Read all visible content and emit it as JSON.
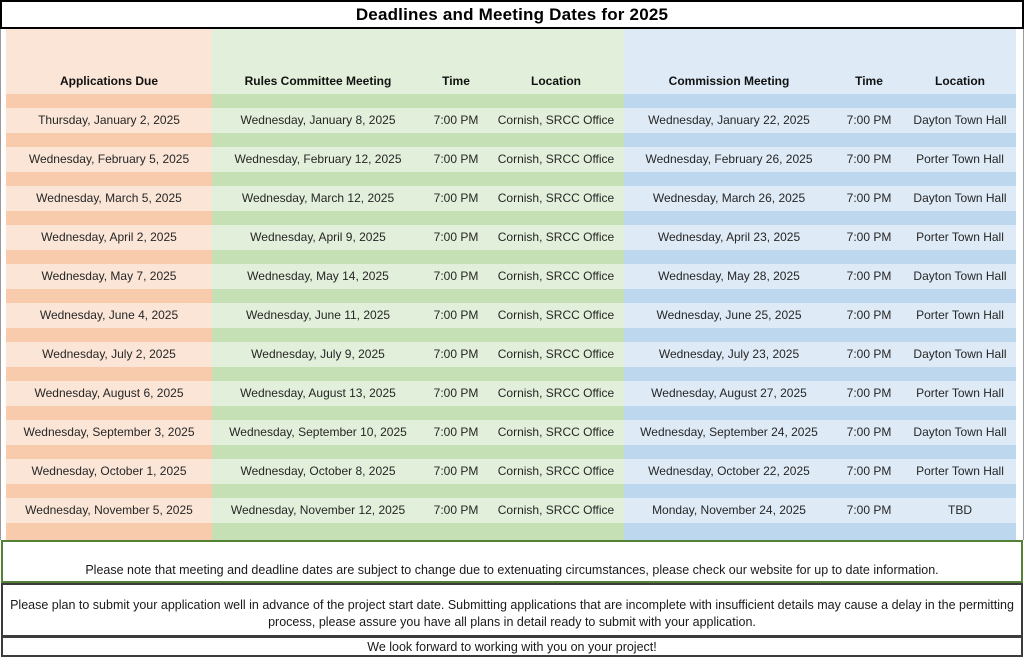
{
  "title": "Deadlines and Meeting Dates for 2025",
  "table": {
    "columns": [
      {
        "key": "applications_due",
        "label": "Applications Due",
        "group": "applications"
      },
      {
        "key": "rules_meeting",
        "label": "Rules Committee Meeting",
        "group": "rules"
      },
      {
        "key": "rules_time",
        "label": "Time",
        "group": "rules"
      },
      {
        "key": "rules_location",
        "label": "Location",
        "group": "rules"
      },
      {
        "key": "commission_meeting",
        "label": "Commission Meeting",
        "group": "commission"
      },
      {
        "key": "commission_time",
        "label": "Time",
        "group": "commission"
      },
      {
        "key": "commission_location",
        "label": "Location",
        "group": "commission"
      }
    ],
    "rows": [
      {
        "applications_due": "Thursday, January 2, 2025",
        "rules_meeting": "Wednesday, January 8, 2025",
        "rules_time": "7:00 PM",
        "rules_location": "Cornish, SRCC Office",
        "commission_meeting": "Wednesday, January 22, 2025",
        "commission_time": "7:00 PM",
        "commission_location": "Dayton Town Hall"
      },
      {
        "applications_due": "Wednesday, February 5, 2025",
        "rules_meeting": "Wednesday, February 12, 2025",
        "rules_time": "7:00 PM",
        "rules_location": "Cornish, SRCC Office",
        "commission_meeting": "Wednesday, February 26, 2025",
        "commission_time": "7:00 PM",
        "commission_location": "Porter Town Hall"
      },
      {
        "applications_due": "Wednesday, March 5, 2025",
        "rules_meeting": "Wednesday, March 12, 2025",
        "rules_time": "7:00 PM",
        "rules_location": "Cornish, SRCC Office",
        "commission_meeting": "Wednesday, March 26, 2025",
        "commission_time": "7:00 PM",
        "commission_location": "Dayton Town Hall"
      },
      {
        "applications_due": "Wednesday, April 2, 2025",
        "rules_meeting": "Wednesday, April 9, 2025",
        "rules_time": "7:00 PM",
        "rules_location": "Cornish, SRCC Office",
        "commission_meeting": "Wednesday, April 23, 2025",
        "commission_time": "7:00 PM",
        "commission_location": "Porter Town Hall"
      },
      {
        "applications_due": "Wednesday, May 7, 2025",
        "rules_meeting": "Wednesday, May 14, 2025",
        "rules_time": "7:00 PM",
        "rules_location": "Cornish, SRCC Office",
        "commission_meeting": "Wednesday, May 28, 2025",
        "commission_time": "7:00 PM",
        "commission_location": "Dayton Town Hall"
      },
      {
        "applications_due": "Wednesday, June 4, 2025",
        "rules_meeting": "Wednesday, June 11, 2025",
        "rules_time": "7:00 PM",
        "rules_location": "Cornish, SRCC Office",
        "commission_meeting": "Wednesday, June 25, 2025",
        "commission_time": "7:00 PM",
        "commission_location": "Porter Town Hall"
      },
      {
        "applications_due": "Wednesday, July 2, 2025",
        "rules_meeting": "Wednesday, July 9, 2025",
        "rules_time": "7:00 PM",
        "rules_location": "Cornish, SRCC Office",
        "commission_meeting": "Wednesday, July 23, 2025",
        "commission_time": "7:00 PM",
        "commission_location": "Dayton Town Hall"
      },
      {
        "applications_due": "Wednesday, August 6, 2025",
        "rules_meeting": "Wednesday, August 13, 2025",
        "rules_time": "7:00 PM",
        "rules_location": "Cornish, SRCC Office",
        "commission_meeting": "Wednesday, August 27, 2025",
        "commission_time": "7:00 PM",
        "commission_location": "Porter Town Hall"
      },
      {
        "applications_due": "Wednesday, September 3, 2025",
        "rules_meeting": "Wednesday, September 10, 2025",
        "rules_time": "7:00 PM",
        "rules_location": "Cornish, SRCC Office",
        "commission_meeting": "Wednesday, September 24, 2025",
        "commission_time": "7:00 PM",
        "commission_location": "Dayton Town Hall"
      },
      {
        "applications_due": "Wednesday, October 1, 2025",
        "rules_meeting": "Wednesday, October 8, 2025",
        "rules_time": "7:00 PM",
        "rules_location": "Cornish, SRCC Office",
        "commission_meeting": "Wednesday, October 22, 2025",
        "commission_time": "7:00 PM",
        "commission_location": "Porter Town Hall"
      },
      {
        "applications_due": "Wednesday, November 5, 2025",
        "rules_meeting": "Wednesday, November 12, 2025",
        "rules_time": "7:00 PM",
        "rules_location": "Cornish, SRCC Office",
        "commission_meeting": "Monday, November 24, 2025",
        "commission_time": "7:00 PM",
        "commission_location": "TBD"
      }
    ]
  },
  "notes": [
    "Please note that meeting and deadline dates are subject to change due to extenuating circumstances, please check our website for up to date information.",
    "Please plan to submit your application well in advance of the project start date. Submitting applications that are incomplete with insufficient details may cause a delay in the permitting process, please assure you have all plans in detail ready to submit with your application.",
    "We look forward to working with you on your project!"
  ],
  "colors": {
    "applications_light": "#FBE5D6",
    "applications_dark": "#F8CBAD",
    "rules_light": "#E2EFDA",
    "rules_dark": "#C5E0B4",
    "commission_light": "#DEEAF6",
    "commission_dark": "#BDD7EE",
    "note_border_green": "#538135",
    "border_dark": "#3B3B3B"
  }
}
